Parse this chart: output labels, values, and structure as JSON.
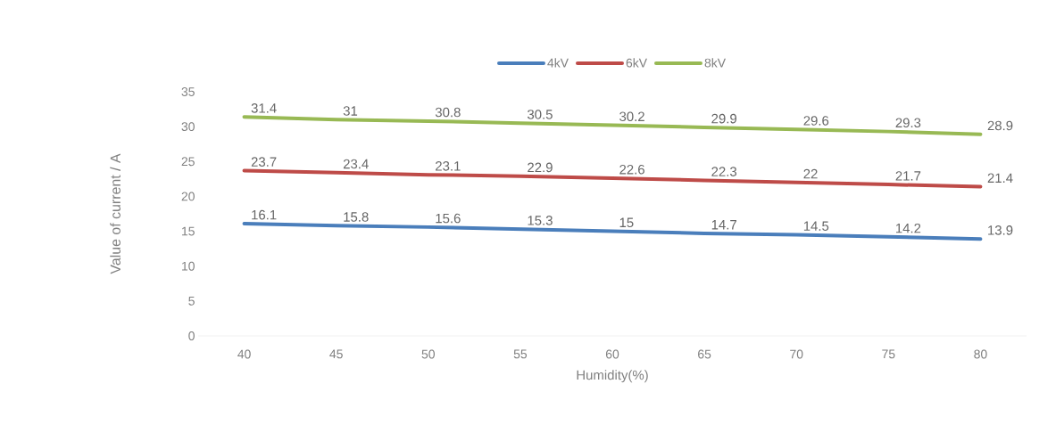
{
  "chart_data": {
    "type": "line",
    "xlabel": "Humidity(%)",
    "ylabel": "Value of current / A",
    "categories": [
      "40",
      "45",
      "50",
      "55",
      "60",
      "65",
      "70",
      "75",
      "80"
    ],
    "series": [
      {
        "name": "4kV",
        "color": "#4a7ebb",
        "values": [
          16.1,
          15.8,
          15.6,
          15.3,
          15,
          14.7,
          14.5,
          14.2,
          13.9
        ]
      },
      {
        "name": "6kV",
        "color": "#be4b48",
        "values": [
          23.7,
          23.4,
          23.1,
          22.9,
          22.6,
          22.3,
          22,
          21.7,
          21.4
        ]
      },
      {
        "name": "8kV",
        "color": "#98b954",
        "values": [
          31.4,
          31,
          30.8,
          30.5,
          30.2,
          29.9,
          29.6,
          29.3,
          28.9
        ]
      }
    ],
    "ylim": [
      0,
      35
    ],
    "yticks": [
      0,
      5,
      10,
      15,
      20,
      25,
      30,
      35
    ],
    "data_labels": true,
    "legend": "top",
    "grid": false,
    "marker": "none",
    "line_style": "solid"
  }
}
